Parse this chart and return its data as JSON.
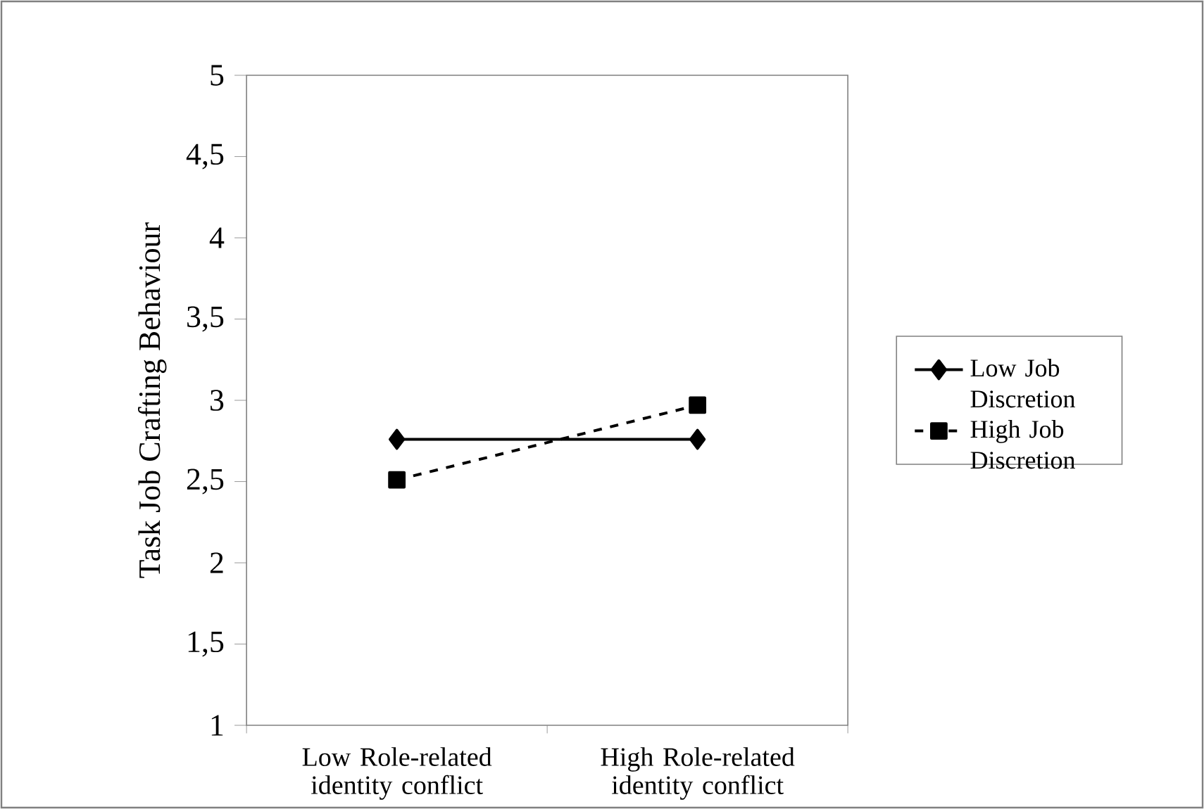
{
  "chart_data": {
    "type": "line",
    "ylabel": "Task Job Crafting Behaviour",
    "categories": [
      "Low Role-related identity conflict",
      "High Role-related identity conflict"
    ],
    "series": [
      {
        "name": "Low Job Discretion",
        "color": "#000000",
        "values": [
          2.76,
          2.76
        ],
        "marker": "diamond",
        "line_style": "solid"
      },
      {
        "name": "High Job Discretion",
        "color": "#000000",
        "values": [
          2.51,
          2.97
        ],
        "marker": "square",
        "line_style": "dashed"
      }
    ],
    "ylim": [
      1,
      5
    ],
    "yticks": [
      1,
      {
        "value": 1.5,
        "label": "1,5"
      },
      2,
      {
        "value": 2.5,
        "label": "2,5"
      },
      3,
      {
        "value": 3.5,
        "label": "3,5"
      },
      4,
      {
        "value": 4.5,
        "label": "4,5"
      },
      5
    ],
    "grid": false,
    "legend": "right"
  }
}
